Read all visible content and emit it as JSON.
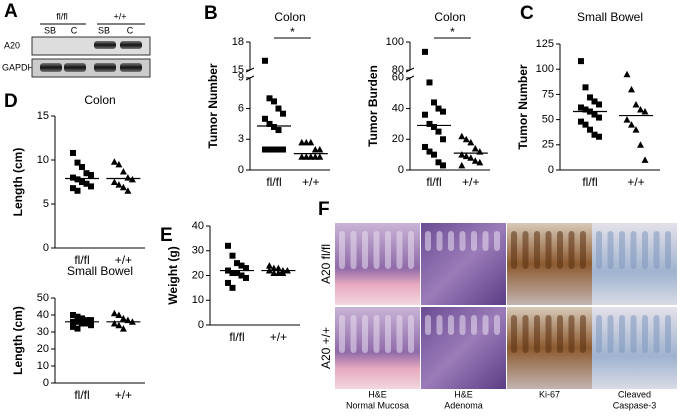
{
  "panel_letters": [
    "A",
    "B",
    "C",
    "D",
    "E",
    "F"
  ],
  "blot": {
    "genotypes": [
      "fl/fl",
      "+/+"
    ],
    "lanes": [
      "SB",
      "C",
      "SB",
      "C"
    ],
    "rows": [
      "A20",
      "GAPDH"
    ]
  },
  "histology": {
    "rows": [
      "A20 fl/fl",
      "A20 +/+"
    ],
    "captions": [
      [
        "H&E",
        "Normal Mucosa"
      ],
      [
        "H&E",
        "Adenoma"
      ],
      [
        "Ki-67"
      ],
      [
        "Cleaved",
        "Caspase-3"
      ]
    ]
  },
  "chart_data": [
    {
      "type": "dotplot",
      "title": "Colon",
      "ylabel": "Tumor Number",
      "categories": [
        "fl/fl",
        "+/+"
      ],
      "markers": [
        "square",
        "triangle"
      ],
      "values": [
        [
          16,
          7,
          6.7,
          6,
          5.5,
          5,
          4.5,
          4.2,
          3.9,
          2,
          2,
          2,
          2,
          2
        ],
        [
          2.7,
          2.7,
          2.7,
          2,
          2,
          1.3,
          1.3,
          1.3,
          1.3,
          1.3
        ]
      ],
      "means": [
        4.3,
        1.6
      ],
      "annotation": "*",
      "ylim": [
        0,
        18
      ],
      "ysegments": [
        [
          0,
          9
        ],
        [
          15,
          18
        ]
      ],
      "yticks": [
        0,
        3,
        6,
        9,
        15,
        18
      ]
    },
    {
      "type": "dotplot",
      "title": "Colon",
      "ylabel": "Tumor Burden",
      "categories": [
        "fl/fl",
        "+/+"
      ],
      "markers": [
        "square",
        "triangle"
      ],
      "values": [
        [
          93,
          57,
          44,
          40,
          38,
          36,
          30,
          28,
          25,
          20,
          15,
          12,
          10,
          5,
          3
        ],
        [
          22,
          20,
          18,
          14,
          12,
          10,
          9,
          8,
          6,
          5,
          3
        ]
      ],
      "means": [
        29,
        11
      ],
      "annotation": "*",
      "ylim": [
        0,
        100
      ],
      "ysegments": [
        [
          0,
          60
        ],
        [
          80,
          100
        ]
      ],
      "yticks": [
        0,
        20,
        40,
        60,
        80,
        100
      ]
    },
    {
      "type": "dotplot",
      "title": "Small Bowel",
      "ylabel": "Tumor Number",
      "categories": [
        "fl/fl",
        "+/+"
      ],
      "markers": [
        "square",
        "triangle"
      ],
      "values": [
        [
          108,
          82,
          72,
          68,
          65,
          62,
          60,
          58,
          55,
          52,
          48,
          45,
          40,
          35,
          33
        ],
        [
          95,
          80,
          65,
          60,
          58,
          50,
          45,
          40,
          25,
          10
        ]
      ],
      "means": [
        58,
        54
      ],
      "ylim": [
        0,
        125
      ],
      "yticks": [
        0,
        25,
        50,
        75,
        100,
        125
      ]
    },
    {
      "type": "dotplot",
      "title": "Colon",
      "ylabel": "Length (cm)",
      "categories": [
        "fl/fl",
        "+/+"
      ],
      "markers": [
        "square",
        "triangle"
      ],
      "values": [
        [
          10.8,
          9.7,
          9.2,
          8.5,
          8.3,
          8,
          7.8,
          7.5,
          7.3,
          7,
          6.8,
          6.5
        ],
        [
          9.8,
          9.5,
          8.7,
          8,
          7.8,
          7.5,
          7.2,
          6.9,
          6.5
        ]
      ],
      "means": [
        7.9,
        7.9
      ],
      "ylim": [
        0,
        15
      ],
      "yticks": [
        0,
        5,
        10,
        15
      ]
    },
    {
      "type": "dotplot",
      "title": "Small Bowel",
      "ylabel": "Length (cm)",
      "categories": [
        "fl/fl",
        "+/+"
      ],
      "markers": [
        "square",
        "triangle"
      ],
      "values": [
        [
          40,
          39,
          38,
          37,
          37,
          36,
          36,
          35,
          35,
          34,
          33,
          32
        ],
        [
          41,
          40,
          38,
          37,
          36,
          35,
          34,
          32
        ]
      ],
      "means": [
        36,
        36
      ],
      "ylim": [
        0,
        50
      ],
      "yticks": [
        0,
        10,
        20,
        30,
        40,
        50
      ]
    },
    {
      "type": "dotplot",
      "ylabel": "Weight (g)",
      "categories": [
        "fl/fl",
        "+/+"
      ],
      "markers": [
        "square",
        "triangle"
      ],
      "values": [
        [
          32,
          28,
          25,
          24,
          23,
          22,
          21,
          21,
          20,
          19,
          17,
          15
        ],
        [
          24,
          23,
          23,
          22,
          22,
          22,
          21,
          21,
          21
        ]
      ],
      "means": [
        22,
        22
      ],
      "ylim": [
        0,
        40
      ],
      "yticks": [
        0,
        10,
        20,
        30,
        40
      ]
    }
  ]
}
